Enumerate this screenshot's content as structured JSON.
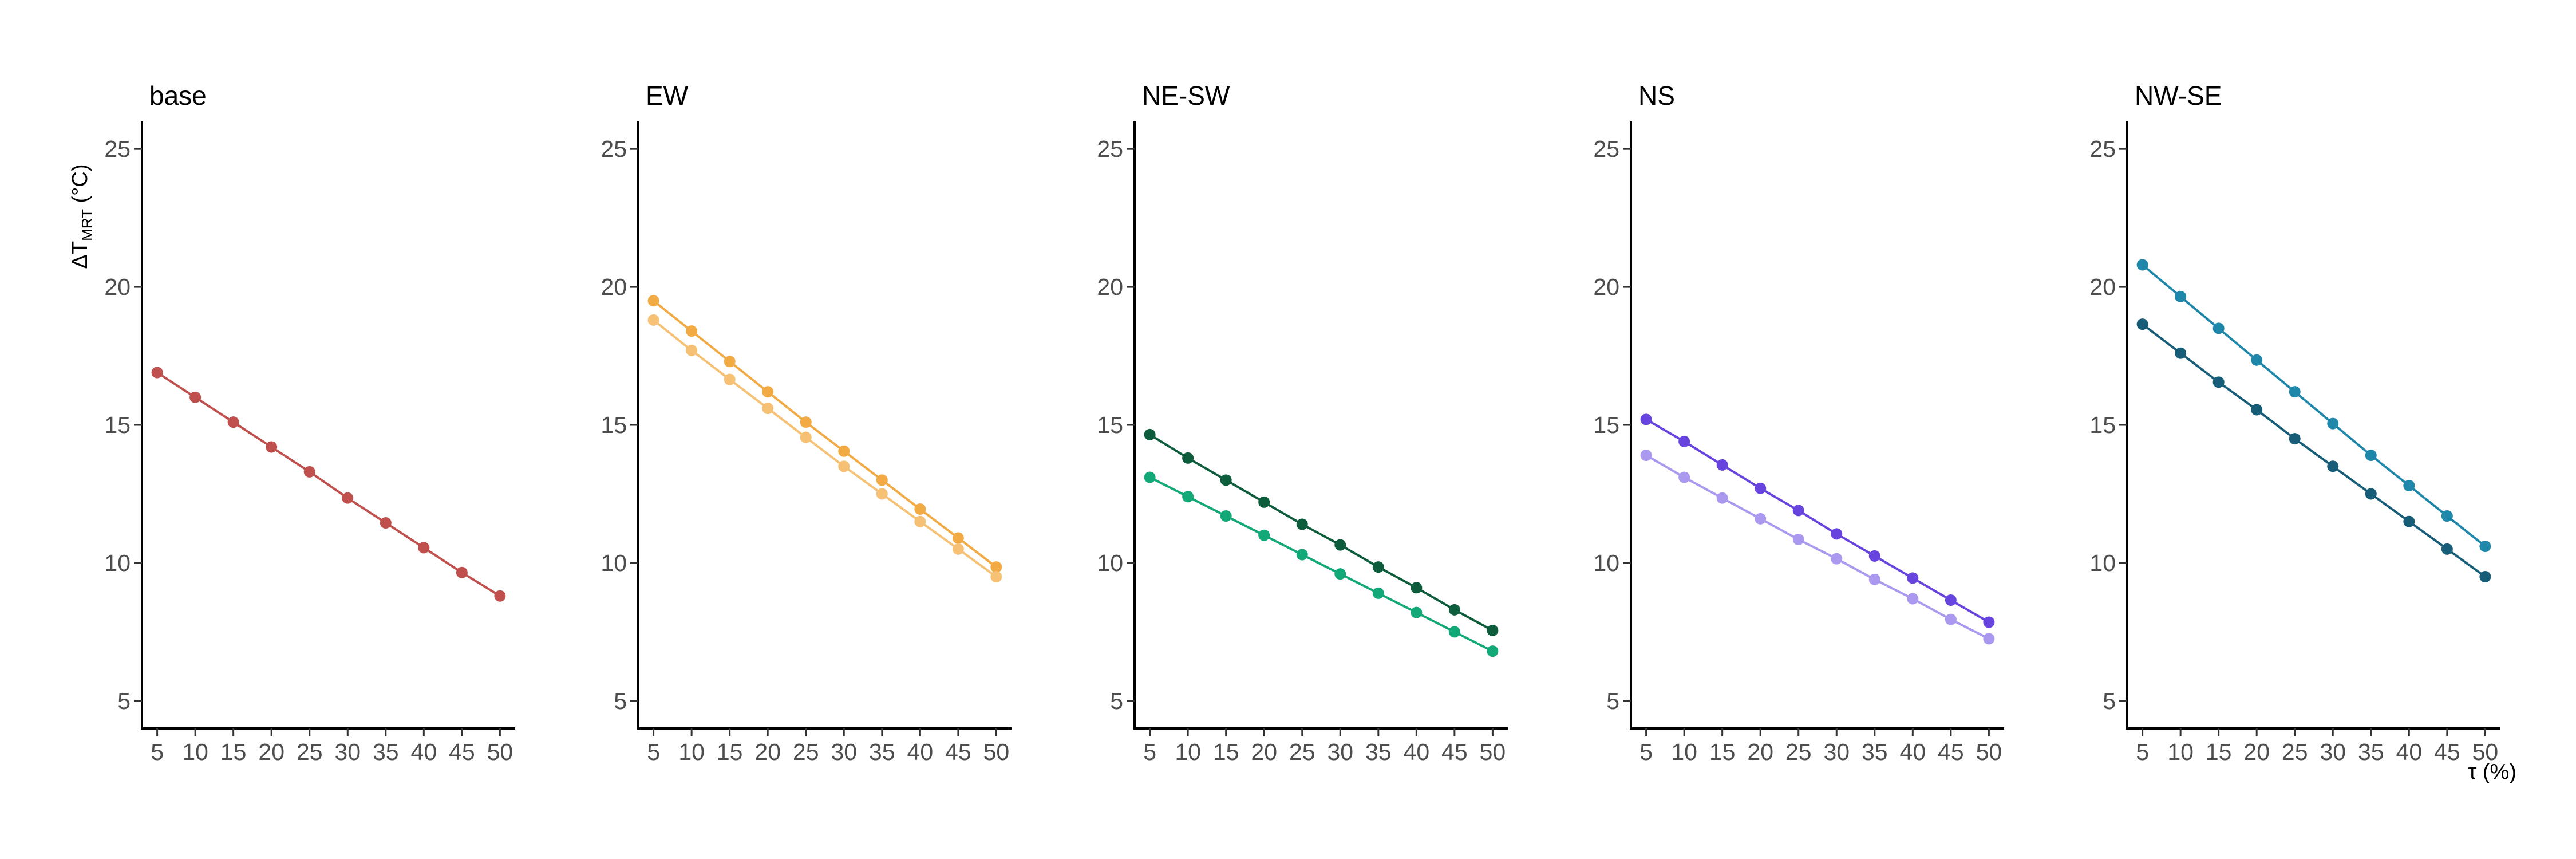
{
  "chart_data": {
    "type": "line",
    "ylabel": {
      "main": "ΔT",
      "sub": "MRT",
      "unit": " (°C)"
    },
    "xlabel": "τ (%)",
    "x": [
      5,
      10,
      15,
      20,
      25,
      30,
      35,
      40,
      45,
      50
    ],
    "xlim": [
      3,
      52
    ],
    "ylim": [
      4,
      26
    ],
    "yticks": [
      5,
      10,
      15,
      20,
      25
    ],
    "grid": false,
    "panels": [
      {
        "title": "base",
        "series": [
          {
            "color": "#c0504d",
            "values": [
              16.9,
              16.0,
              15.1,
              14.2,
              13.3,
              12.35,
              11.45,
              10.55,
              9.65,
              8.8
            ]
          }
        ]
      },
      {
        "title": "EW",
        "series": [
          {
            "color": "#f2aa44",
            "values": [
              19.5,
              18.4,
              17.3,
              16.2,
              15.1,
              14.05,
              13.0,
              11.95,
              10.9,
              9.85
            ]
          },
          {
            "color": "#f6c174",
            "values": [
              18.8,
              17.7,
              16.65,
              15.6,
              14.55,
              13.5,
              12.5,
              11.5,
              10.5,
              9.5
            ]
          }
        ]
      },
      {
        "title": "NE-SW",
        "series": [
          {
            "color": "#0d5c3c",
            "values": [
              14.65,
              13.8,
              13.0,
              12.2,
              11.4,
              10.65,
              9.85,
              9.1,
              8.3,
              7.55
            ]
          },
          {
            "color": "#12a878",
            "values": [
              13.1,
              12.4,
              11.7,
              11.0,
              10.3,
              9.6,
              8.9,
              8.2,
              7.5,
              6.8
            ]
          }
        ]
      },
      {
        "title": "NS",
        "series": [
          {
            "color": "#6644dd",
            "values": [
              15.2,
              14.4,
              13.55,
              12.7,
              11.9,
              11.05,
              10.25,
              9.45,
              8.65,
              7.85
            ]
          },
          {
            "color": "#aa99ee",
            "values": [
              13.9,
              13.1,
              12.35,
              11.6,
              10.85,
              10.15,
              9.4,
              8.7,
              7.95,
              7.25
            ]
          }
        ]
      },
      {
        "title": "NW-SE",
        "series": [
          {
            "color": "#1f88aa",
            "values": [
              20.8,
              19.65,
              18.5,
              17.35,
              16.2,
              15.05,
              13.9,
              12.8,
              11.7,
              10.6
            ]
          },
          {
            "color": "#175d78",
            "values": [
              18.65,
              17.6,
              16.55,
              15.55,
              14.5,
              13.5,
              12.5,
              11.5,
              10.5,
              9.5
            ]
          }
        ]
      }
    ]
  }
}
